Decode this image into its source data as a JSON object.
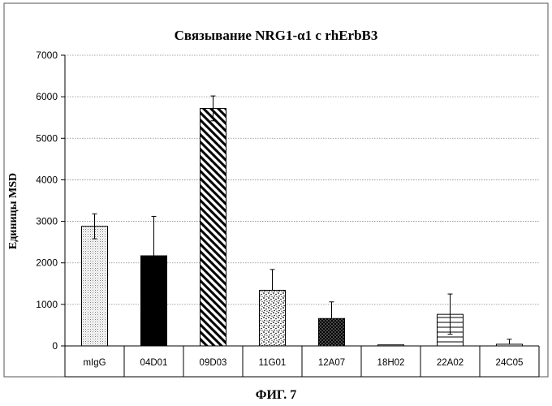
{
  "caption": "ФИГ. 7",
  "chart_data": {
    "type": "bar",
    "title": "Связывание NRG1-α1 с rhErbB3",
    "xlabel": "",
    "ylabel": "Единицы MSD",
    "ylim": [
      0,
      7000
    ],
    "yticks": [
      0,
      1000,
      2000,
      3000,
      4000,
      5000,
      6000,
      7000
    ],
    "grid": true,
    "categories": [
      "mIgG",
      "04D01",
      "09D03",
      "11G01",
      "12A07",
      "18H02",
      "22A02",
      "24C05"
    ],
    "values": [
      2880,
      2170,
      5720,
      1340,
      660,
      25,
      760,
      40
    ],
    "error_plus": [
      300,
      950,
      300,
      500,
      400,
      0,
      490,
      120
    ],
    "error_minus": [
      300,
      0,
      300,
      0,
      0,
      0,
      480,
      0
    ],
    "patterns": [
      "fine-dots",
      "solid-black",
      "diagonal-stripes",
      "speckle",
      "dense-dots",
      "plain",
      "horizontal-lines",
      "plain"
    ]
  }
}
